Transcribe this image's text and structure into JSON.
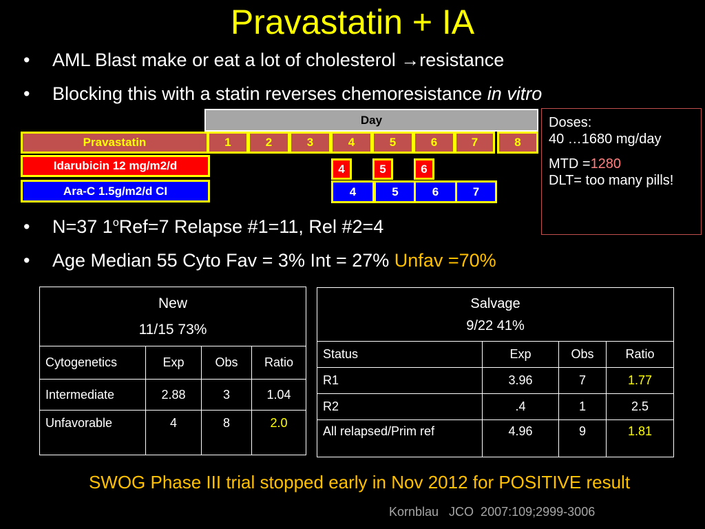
{
  "title": "Pravastatin + IA",
  "bullets": [
    {
      "text_before": "AML Blast  make or eat a lot of cholesterol ",
      "arrow": "→",
      "text_after": "resistance"
    },
    {
      "text": "Blocking this with a statin reverses chemoresistance ",
      "italic": "in vitro"
    }
  ],
  "schedule": {
    "day_header": "Day",
    "rows": [
      {
        "label": "Pravastatin",
        "days": [
          "1",
          "2",
          "3",
          "4",
          "5",
          "6",
          "7",
          "8"
        ]
      },
      {
        "label": "Idarubicin 12 mg/m2/d",
        "days": [
          "4",
          "5",
          "6"
        ]
      },
      {
        "label": "Ara-C 1.5g/m2/d CI",
        "days": [
          "4",
          "5",
          "6",
          "7"
        ]
      }
    ]
  },
  "doses": {
    "heading": "Doses:",
    "range": "40 …1680 mg/day",
    "mtd_label": "MTD =",
    "mtd_value": "1280",
    "dlt": "DLT= too many pills!"
  },
  "stats": [
    {
      "pre": "N=37 1",
      "sup": "o",
      "post": "Ref=7 Relapse #1=11, Rel #2=4"
    },
    {
      "text": "Age Median 55  Cyto Fav = 3% Int = 27% ",
      "highlight": "Unfav =70%"
    }
  ],
  "table_new": {
    "title": "New",
    "subtitle": "11/15  73%",
    "headers": [
      "Cytogenetics",
      "Exp",
      "Obs",
      "Ratio"
    ],
    "rows": [
      [
        "Intermediate",
        "2.88",
        "3",
        "1.04"
      ],
      [
        "Unfavorable",
        "4",
        "8",
        "2.0"
      ]
    ]
  },
  "table_salvage": {
    "title": "Salvage",
    "subtitle": "9/22 41%",
    "headers": [
      "Status",
      "Exp",
      "Obs",
      "Ratio"
    ],
    "rows": [
      [
        "R1",
        "3.96",
        "7",
        "1.77"
      ],
      [
        "R2",
        ".4",
        "1",
        "2.5"
      ],
      [
        "All relapsed/Prim ref",
        "4.96",
        "9",
        "1.81"
      ]
    ]
  },
  "footer": "SWOG Phase III trial stopped early in Nov 2012  for POSITIVE result",
  "citation": "Kornblau   JCO  2007:109;2999-3006",
  "colors": {
    "title": "#ffff00",
    "highlight": "#ffc000",
    "mtd": "#ff7f7f",
    "pravastatin": "#c0504d",
    "idarubicin": "#ff0000",
    "arac": "#0000ff"
  }
}
